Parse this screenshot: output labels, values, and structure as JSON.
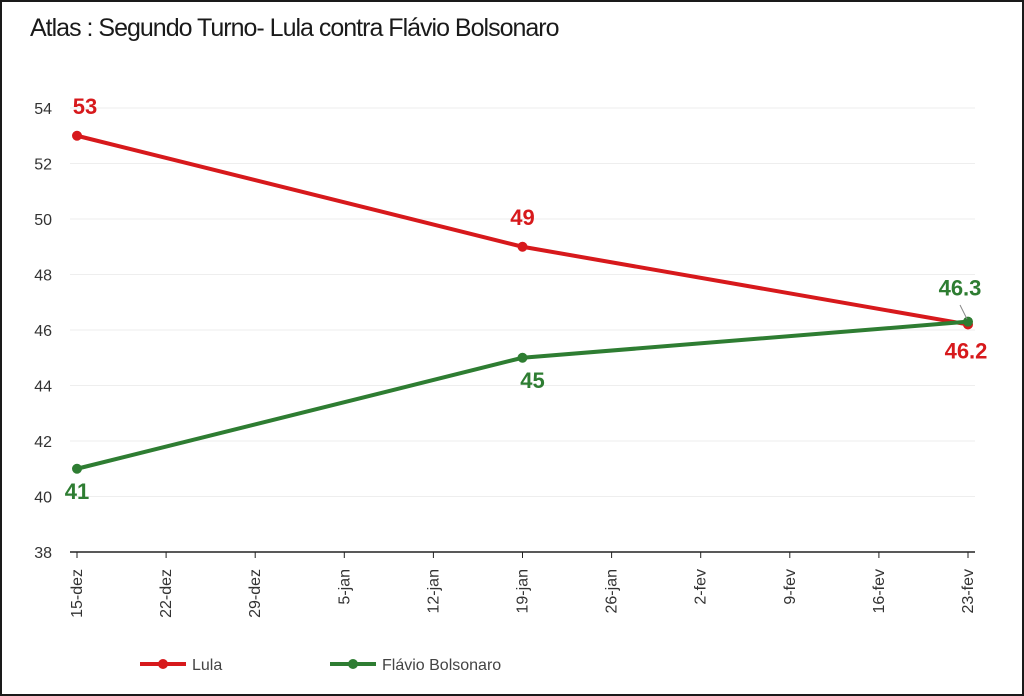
{
  "title": "Atlas : Segundo Turno- Lula contra Flávio Bolsonaro",
  "colors": {
    "lula": "#d7191c",
    "flavio": "#2e7d32",
    "grid": "#eeeeee",
    "axis": "#222222"
  },
  "chart_data": {
    "type": "line",
    "title": "Atlas : Segundo Turno- Lula contra Flávio Bolsonaro",
    "xlabel": "",
    "ylabel": "",
    "ylim": [
      38,
      54
    ],
    "yticks": [
      38,
      40,
      42,
      44,
      46,
      48,
      50,
      52,
      54
    ],
    "xticks": [
      "15-dez",
      "22-dez",
      "29-dez",
      "5-jan",
      "12-jan",
      "19-jan",
      "26-jan",
      "2-fev",
      "9-fev",
      "16-fev",
      "23-fev"
    ],
    "grid": true,
    "legend_position": "bottom-left",
    "series": [
      {
        "name": "Lula",
        "color": "#d7191c",
        "points": [
          {
            "x": "15-dez",
            "y": 53,
            "label": "53"
          },
          {
            "x": "19-jan",
            "y": 49,
            "label": "49"
          },
          {
            "x": "23-fev",
            "y": 46.2,
            "label": "46.2"
          }
        ]
      },
      {
        "name": "Flávio Bolsonaro",
        "color": "#2e7d32",
        "points": [
          {
            "x": "15-dez",
            "y": 41,
            "label": "41"
          },
          {
            "x": "19-jan",
            "y": 45,
            "label": "45"
          },
          {
            "x": "23-fev",
            "y": 46.3,
            "label": "46.3"
          }
        ]
      }
    ]
  }
}
